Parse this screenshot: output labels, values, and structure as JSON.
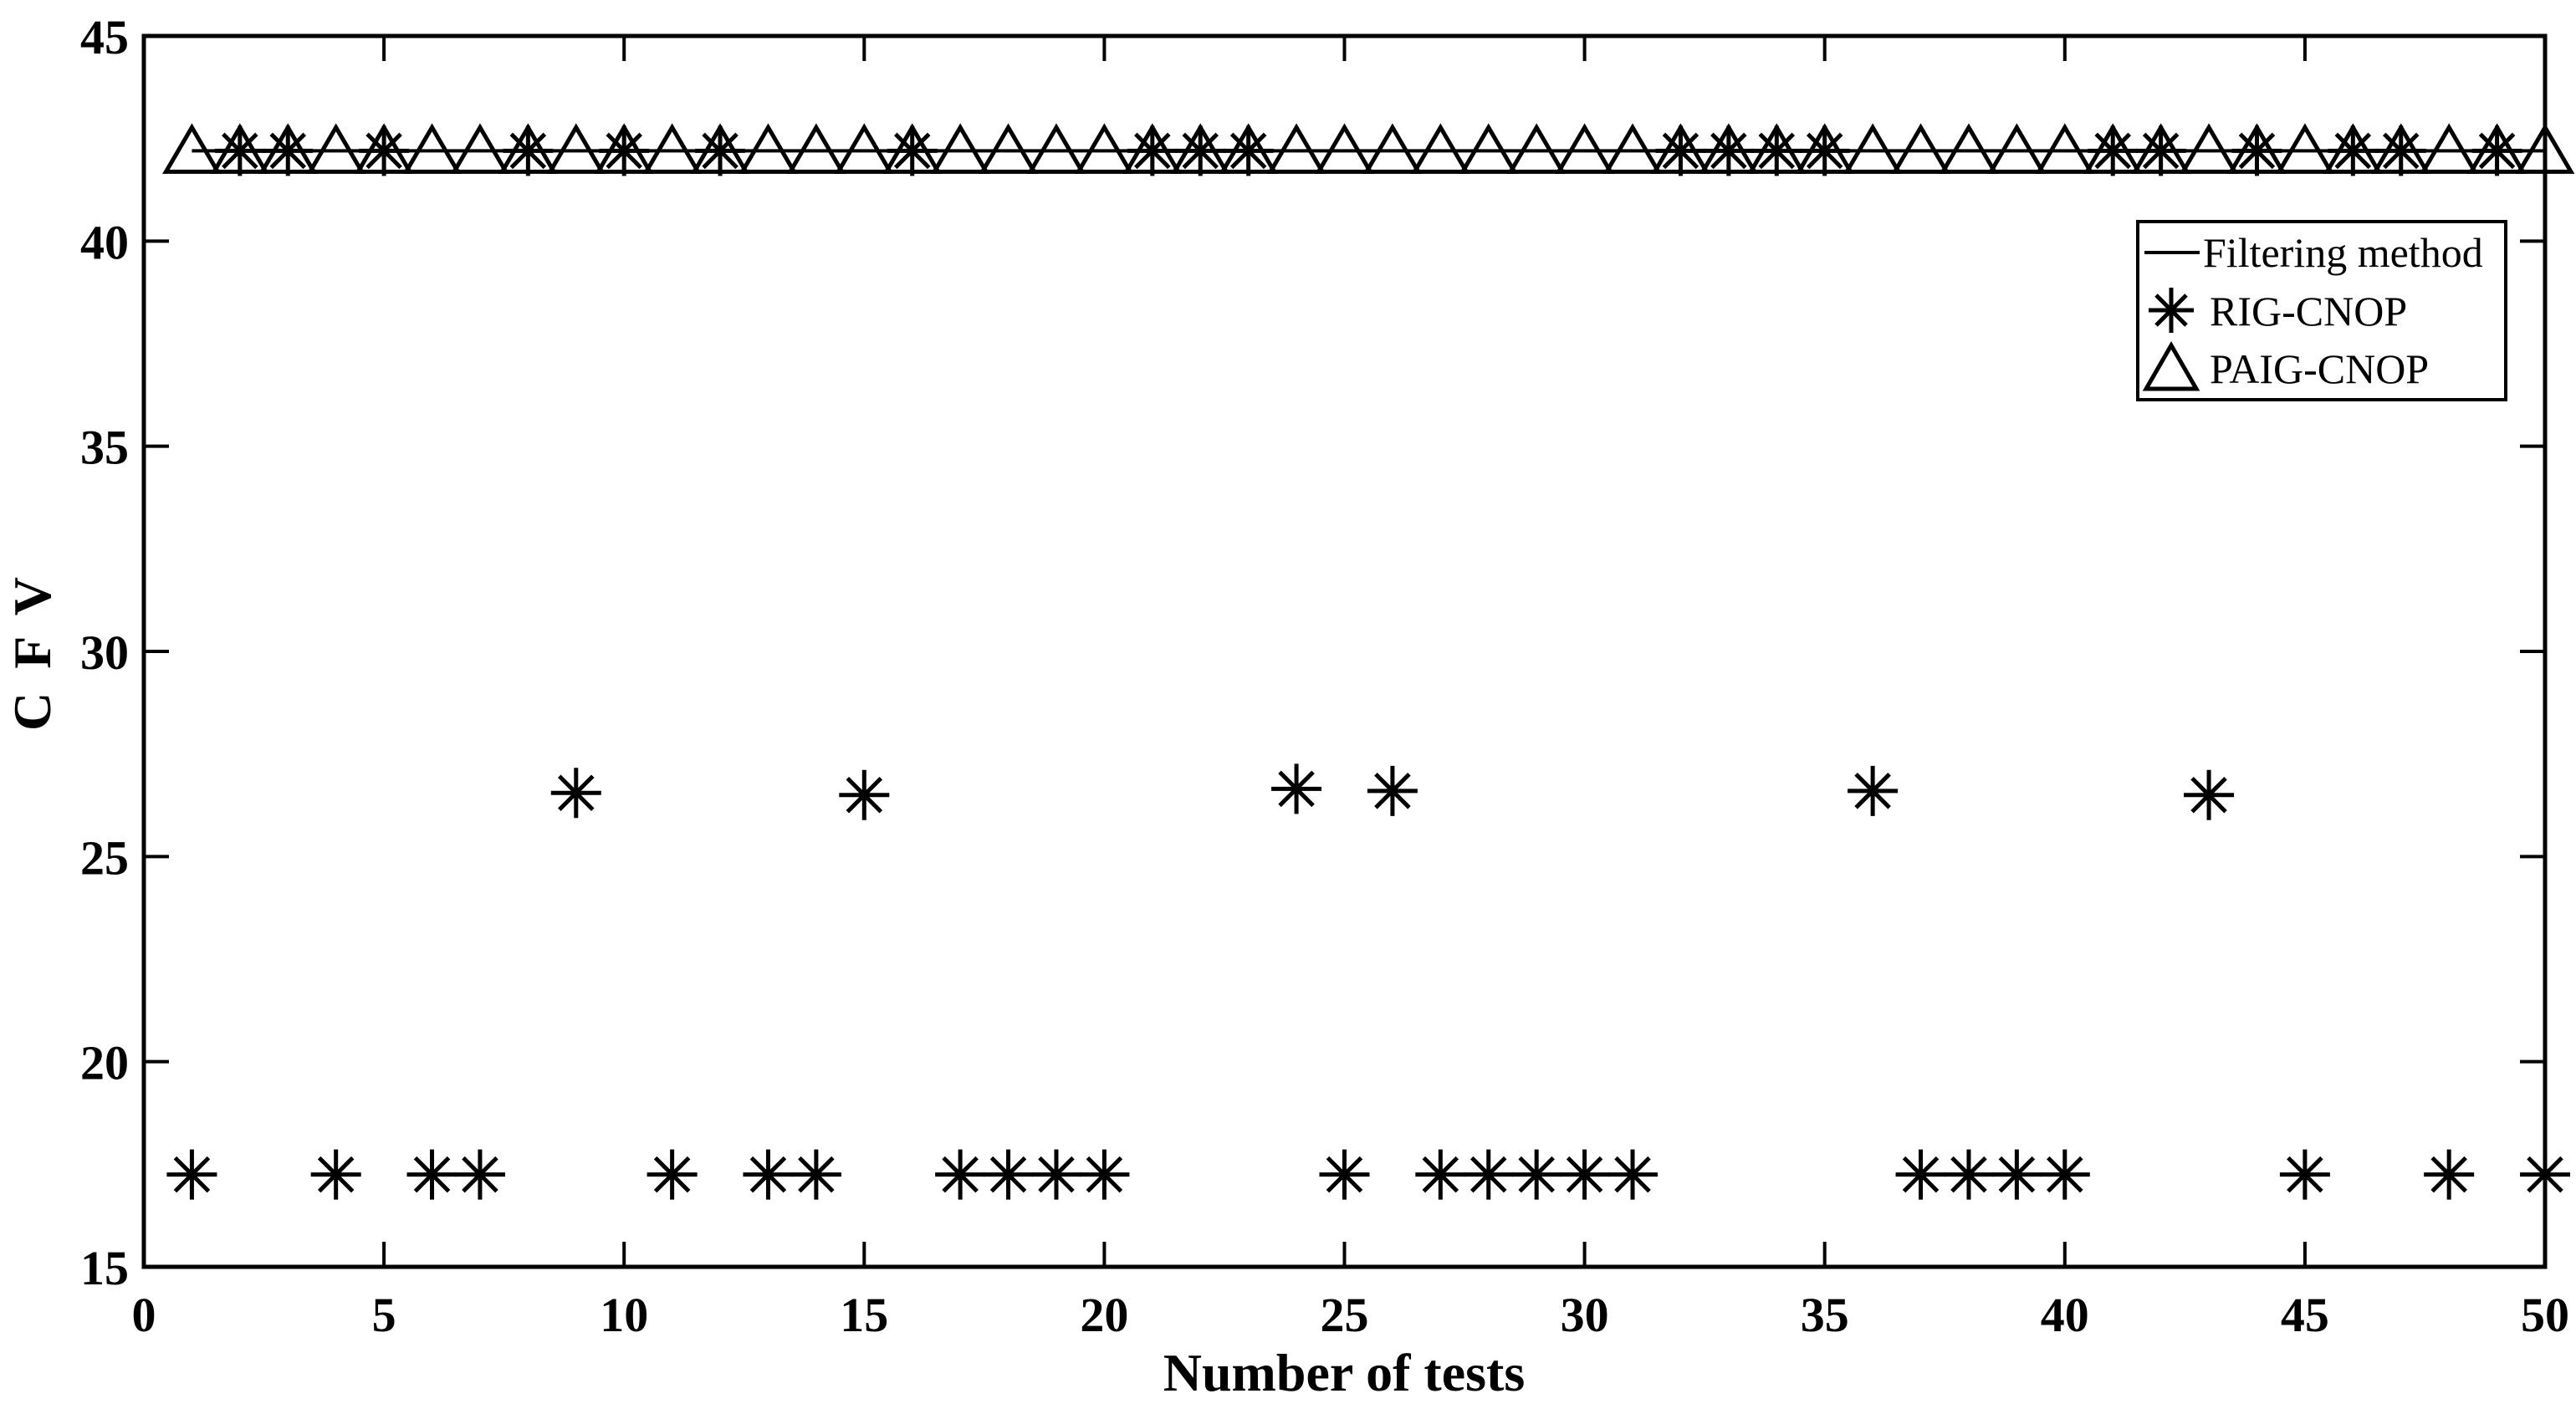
{
  "figure": {
    "background": "#ffffff",
    "ink": "#000000"
  },
  "chart_data": {
    "type": "scatter",
    "title": "",
    "xlabel": "Number of tests",
    "ylabel": "C F V",
    "xlim": [
      0,
      50
    ],
    "ylim": [
      15,
      45
    ],
    "xticks": [
      0,
      5,
      10,
      15,
      20,
      25,
      30,
      35,
      40,
      45,
      50
    ],
    "yticks": [
      15,
      20,
      25,
      30,
      35,
      40,
      45
    ],
    "grid": false,
    "box": true,
    "legend_position": "upper right",
    "series": [
      {
        "name": "Filtering method",
        "type": "line",
        "marker": "none",
        "y": 42.2,
        "x_start": 1,
        "x_end": 50
      },
      {
        "name": "RIG-CNOP",
        "type": "scatter",
        "marker": "asterisk",
        "x": [
          1,
          2,
          3,
          4,
          5,
          6,
          7,
          8,
          9,
          10,
          11,
          12,
          13,
          14,
          15,
          16,
          17,
          18,
          19,
          20,
          21,
          22,
          23,
          24,
          25,
          26,
          27,
          28,
          29,
          30,
          31,
          32,
          33,
          34,
          35,
          36,
          37,
          38,
          39,
          40,
          41,
          42,
          43,
          44,
          45,
          46,
          47,
          48,
          49,
          50
        ],
        "y": [
          17.25,
          42.2,
          42.2,
          17.25,
          42.2,
          17.25,
          17.25,
          42.2,
          26.55,
          42.2,
          17.25,
          42.2,
          17.25,
          17.25,
          26.5,
          42.2,
          17.25,
          17.25,
          17.25,
          17.25,
          42.2,
          42.2,
          42.2,
          26.65,
          17.25,
          26.6,
          17.25,
          17.25,
          17.25,
          17.25,
          17.25,
          42.2,
          42.2,
          42.2,
          42.2,
          26.6,
          17.25,
          17.25,
          17.25,
          17.25,
          42.2,
          42.2,
          26.5,
          42.2,
          17.25,
          42.2,
          42.2,
          17.25,
          42.2,
          17.25
        ]
      },
      {
        "name": "PAIG-CNOP",
        "type": "scatter",
        "marker": "triangle",
        "x": [
          1,
          2,
          3,
          4,
          5,
          6,
          7,
          8,
          9,
          10,
          11,
          12,
          13,
          14,
          15,
          16,
          17,
          18,
          19,
          20,
          21,
          22,
          23,
          24,
          25,
          26,
          27,
          28,
          29,
          30,
          31,
          32,
          33,
          34,
          35,
          36,
          37,
          38,
          39,
          40,
          41,
          42,
          43,
          44,
          45,
          46,
          47,
          48,
          49,
          50
        ],
        "y": [
          42.2,
          42.2,
          42.2,
          42.2,
          42.2,
          42.2,
          42.2,
          42.2,
          42.2,
          42.2,
          42.2,
          42.2,
          42.2,
          42.2,
          42.2,
          42.2,
          42.2,
          42.2,
          42.2,
          42.2,
          42.2,
          42.2,
          42.2,
          42.2,
          42.2,
          42.2,
          42.2,
          42.2,
          42.2,
          42.2,
          42.2,
          42.2,
          42.2,
          42.2,
          42.2,
          42.2,
          42.2,
          42.2,
          42.2,
          42.2,
          42.2,
          42.2,
          42.2,
          42.2,
          42.2,
          42.2,
          42.2,
          42.2,
          42.2,
          42.2
        ]
      }
    ]
  }
}
